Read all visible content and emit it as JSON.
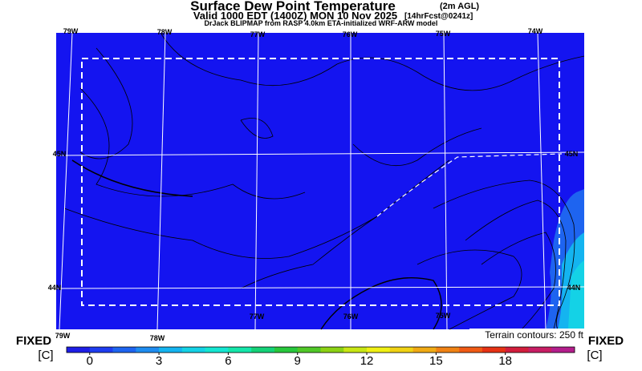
{
  "header": {
    "title": "Surface Dew Point Temperature",
    "title_note": "(2m AGL)",
    "valid": "Valid 1000 EDT (1400Z) MON 10 Nov 2025",
    "forecast": "[14hrFcst@0241z]",
    "source": "DrJack BLIPMAP from RASP 4.0km ETA-initialized WRF-ARW model"
  },
  "map": {
    "top_labels": [
      "79W",
      "78W",
      "77W",
      "76W",
      "75W",
      "74W"
    ],
    "bottom_labels": [
      "79W",
      "78W",
      "77W",
      "76W",
      "75W"
    ],
    "lat_labels": [
      "45N",
      "45N",
      "44N",
      "44N"
    ],
    "terrain_note": "Terrain contours: 250 ft"
  },
  "colorbar": {
    "left_mode": "FIXED",
    "left_unit": "[C]",
    "right_mode": "FIXED",
    "right_unit": "[C]",
    "range": [
      -1,
      21
    ],
    "ticks": [
      0,
      3,
      6,
      9,
      12,
      15,
      18
    ],
    "colors": [
      "#1e1ee6",
      "#1e3cf0",
      "#1e64f0",
      "#1e8cf0",
      "#14b4f0",
      "#14d2e6",
      "#14e6d2",
      "#14e6aa",
      "#14d278",
      "#28c83c",
      "#50c828",
      "#8cd214",
      "#c8e614",
      "#f0f014",
      "#f0d214",
      "#f0aa14",
      "#f08214",
      "#f05a14",
      "#e63214",
      "#d21e3c",
      "#c81e64",
      "#b41e8c"
    ]
  }
}
